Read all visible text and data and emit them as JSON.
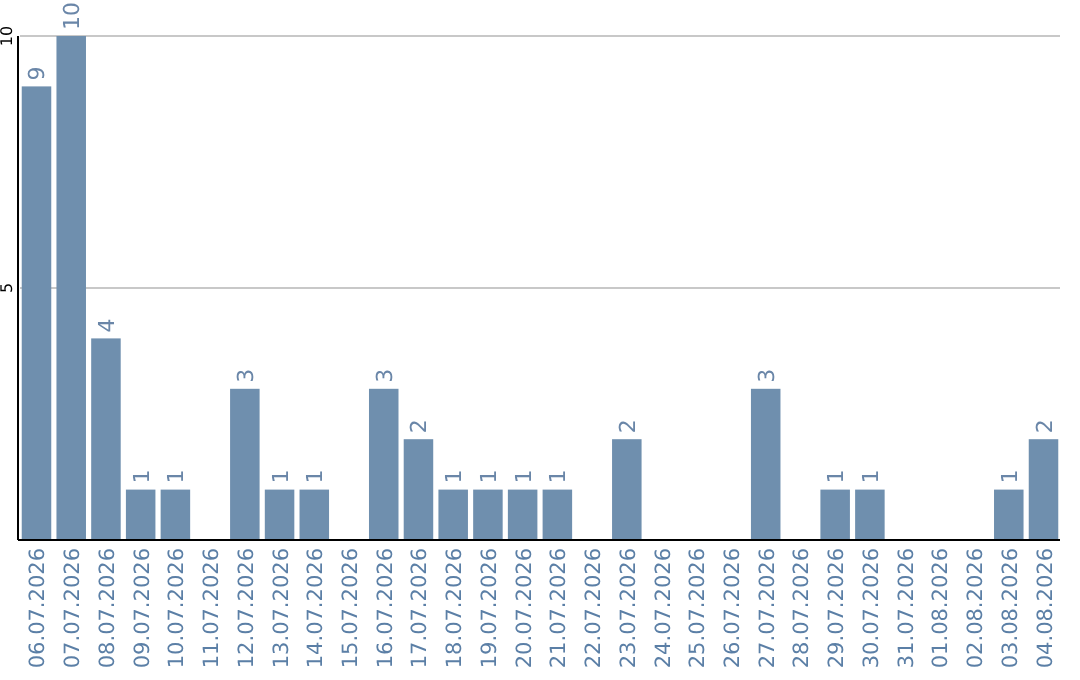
{
  "chart_data": {
    "type": "bar",
    "categories": [
      "06.07.2026",
      "07.07.2026",
      "08.07.2026",
      "09.07.2026",
      "10.07.2026",
      "11.07.2026",
      "12.07.2026",
      "13.07.2026",
      "14.07.2026",
      "15.07.2026",
      "16.07.2026",
      "17.07.2026",
      "18.07.2026",
      "19.07.2026",
      "20.07.2026",
      "21.07.2026",
      "22.07.2026",
      "23.07.2026",
      "24.07.2026",
      "25.07.2026",
      "26.07.2026",
      "27.07.2026",
      "28.07.2026",
      "29.07.2026",
      "30.07.2026",
      "31.07.2026",
      "01.08.2026",
      "02.08.2026",
      "03.08.2026",
      "04.08.2026"
    ],
    "values": [
      9,
      10,
      4,
      1,
      1,
      null,
      3,
      1,
      1,
      null,
      3,
      2,
      1,
      1,
      1,
      1,
      null,
      2,
      null,
      null,
      null,
      3,
      null,
      1,
      1,
      null,
      null,
      null,
      1,
      2
    ],
    "color": "#6f8fae",
    "ylim": [
      0,
      10
    ],
    "yticks": [
      {
        "value": 0,
        "label": null
      },
      5,
      10
    ],
    "grid": "y",
    "data_labels": true
  }
}
